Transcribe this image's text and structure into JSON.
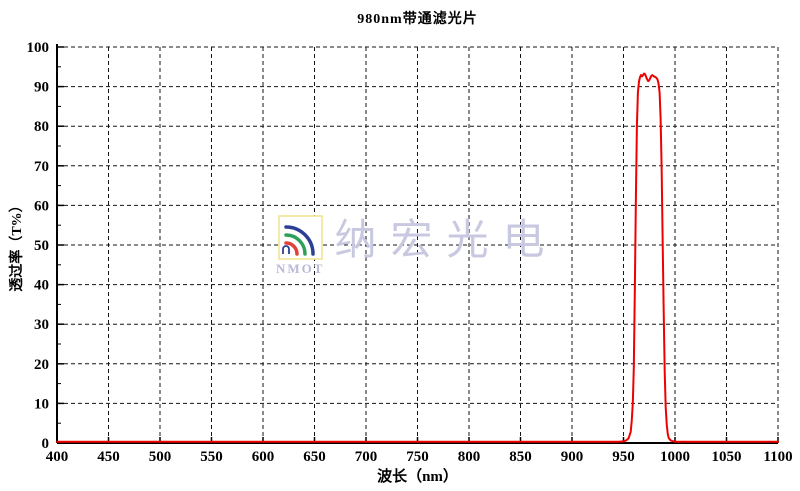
{
  "page": {
    "background": "#ffffff"
  },
  "watermark": {
    "logo_text": "NMOT",
    "text": "纳宏光电",
    "colors": {
      "box_border": "#efe48e",
      "arc_outer": "#2b3f96",
      "arc_middle": "#2fa05a",
      "arc_inner": "#e0413a",
      "logo_text": "#b9b9d8",
      "text": "#c8c8e0"
    }
  },
  "chart_data": {
    "type": "line",
    "title": "980nm带通滤光片",
    "xlabel": "波长（nm）",
    "ylabel": "透过率（T%）",
    "xlim": [
      400,
      1100
    ],
    "ylim": [
      0,
      100
    ],
    "x_tick_step": 50,
    "y_tick_step": 10,
    "y_minor_tick_step": 5,
    "grid": true,
    "grid_style": "dashed",
    "axis_color": "#000000",
    "grid_color": "#151515",
    "legend_position": "none",
    "series": [
      {
        "name": "透过率",
        "color": "#ee0000",
        "points": [
          [
            400,
            0.3
          ],
          [
            450,
            0.3
          ],
          [
            500,
            0.3
          ],
          [
            550,
            0.3
          ],
          [
            600,
            0.3
          ],
          [
            650,
            0.3
          ],
          [
            700,
            0.3
          ],
          [
            750,
            0.3
          ],
          [
            800,
            0.3
          ],
          [
            850,
            0.3
          ],
          [
            900,
            0.3
          ],
          [
            930,
            0.3
          ],
          [
            945,
            0.3
          ],
          [
            950,
            0.4
          ],
          [
            953,
            0.7
          ],
          [
            955,
            1.2
          ],
          [
            957,
            2.8
          ],
          [
            958,
            5.5
          ],
          [
            959,
            10
          ],
          [
            960,
            19
          ],
          [
            961,
            38
          ],
          [
            962,
            62
          ],
          [
            963,
            80
          ],
          [
            964,
            88.5
          ],
          [
            965,
            91.3
          ],
          [
            966,
            92.4
          ],
          [
            967,
            92.9
          ],
          [
            968,
            92.6
          ],
          [
            969,
            92.9
          ],
          [
            970,
            93.3
          ],
          [
            971,
            93.1
          ],
          [
            972,
            92.4
          ],
          [
            973,
            91.8
          ],
          [
            974,
            91.4
          ],
          [
            975,
            91.6
          ],
          [
            976,
            92.2
          ],
          [
            977,
            92.7
          ],
          [
            978,
            92.9
          ],
          [
            979,
            92.7
          ],
          [
            980,
            92.5
          ],
          [
            981,
            92.4
          ],
          [
            982,
            92.2
          ],
          [
            983,
            91.8
          ],
          [
            984,
            90.8
          ],
          [
            985,
            88.5
          ],
          [
            986,
            82
          ],
          [
            987,
            70
          ],
          [
            988,
            52
          ],
          [
            989,
            33
          ],
          [
            990,
            18
          ],
          [
            991,
            9
          ],
          [
            992,
            4.5
          ],
          [
            993,
            2.2
          ],
          [
            994,
            1.2
          ],
          [
            996,
            0.6
          ],
          [
            1000,
            0.3
          ],
          [
            1050,
            0.3
          ],
          [
            1100,
            0.3
          ]
        ]
      }
    ]
  }
}
